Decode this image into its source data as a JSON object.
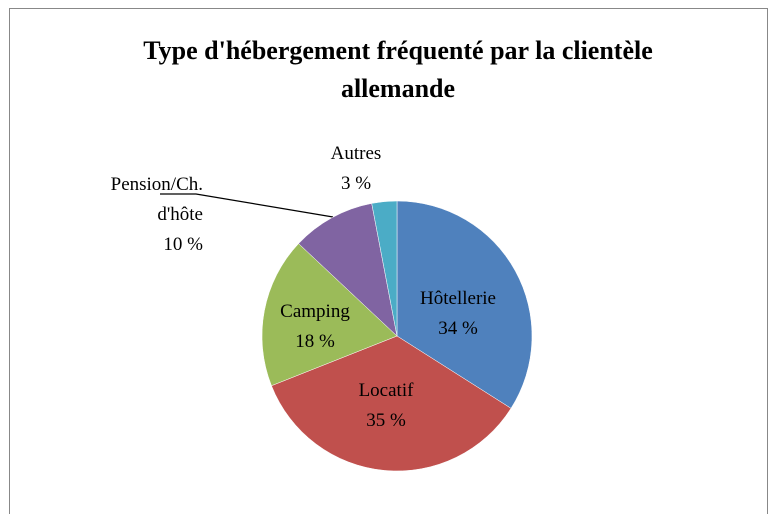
{
  "chart_data": {
    "type": "pie",
    "title": "Type d'hébergement fréquenté par la clientèle allemande",
    "categories": [
      "Hôtellerie",
      "Locatif",
      "Camping",
      "Pension/Ch. d'hôte",
      "Autres"
    ],
    "values": [
      34,
      35,
      18,
      10,
      3
    ],
    "value_labels": [
      "34 %",
      "35 %",
      "18 %",
      "10 %",
      "3 %"
    ],
    "colors": [
      "#4f81bd",
      "#c0504d",
      "#9bbb59",
      "#8064a2",
      "#4bacc6"
    ]
  }
}
